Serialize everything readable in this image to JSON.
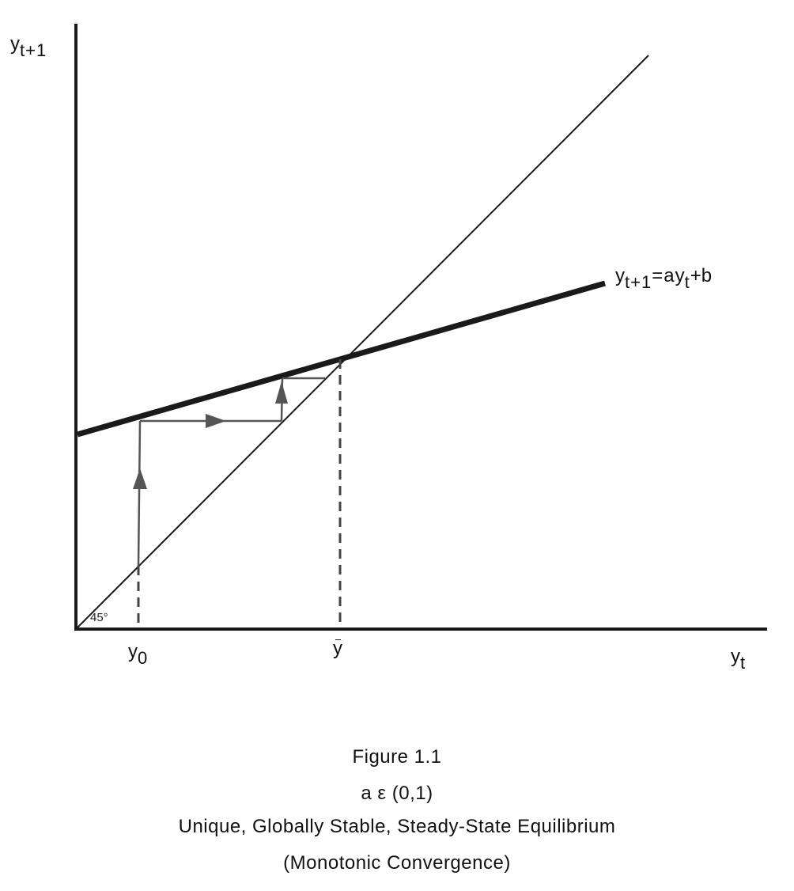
{
  "labels": {
    "y_axis": {
      "base": "y",
      "sub": "t+1"
    },
    "x_axis": {
      "base": "y",
      "sub": "t"
    },
    "angle": "45°",
    "y0": {
      "base": "y",
      "sub": "0"
    },
    "ybar": "y",
    "curve": {
      "lhs_base": "y",
      "lhs_sub": "t+1",
      "eq": "=a",
      "rhs_base": "y",
      "rhs_sub": "t",
      "tail": "+b"
    }
  },
  "caption": {
    "figure": "Figure 1.1",
    "param": "a ε (0,1)",
    "title": "Unique, Globally Stable, Steady-State Equilibrium",
    "subtitle": "(Monotonic Convergence)"
  }
}
